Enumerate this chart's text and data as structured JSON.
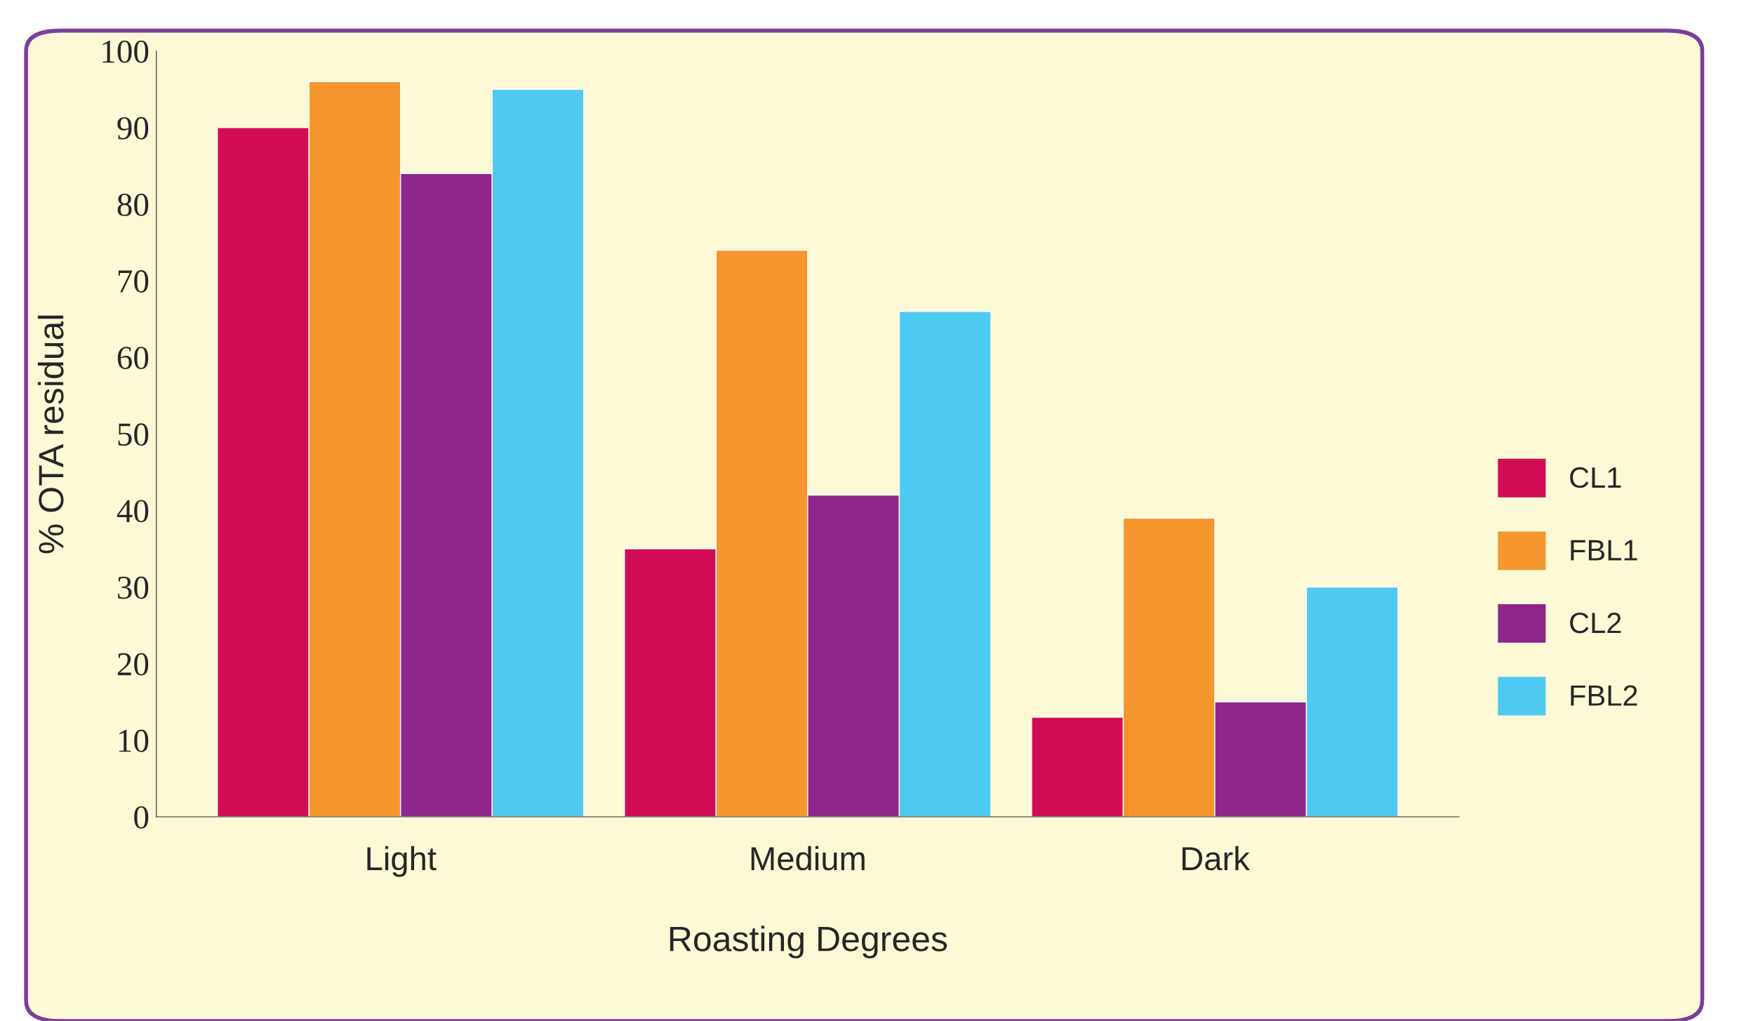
{
  "chart_data": {
    "type": "bar",
    "xlabel": "Roasting Degrees",
    "ylabel": "% OTA residual",
    "categories": [
      "Light",
      "Medium",
      "Dark"
    ],
    "series": [
      {
        "name": "CL1",
        "color": "#d10c55",
        "values": [
          90,
          35,
          13
        ]
      },
      {
        "name": "FBL1",
        "color": "#f6962e",
        "values": [
          96,
          74,
          39
        ]
      },
      {
        "name": "CL2",
        "color": "#8e268c",
        "values": [
          84,
          42,
          15
        ]
      },
      {
        "name": "FBL2",
        "color": "#4ec9f1",
        "values": [
          95,
          66,
          30
        ]
      }
    ],
    "ylim": [
      0,
      100
    ],
    "yticks": [
      0,
      10,
      20,
      30,
      40,
      50,
      60,
      70,
      80,
      90,
      100
    ],
    "grid": false,
    "legend": "right"
  }
}
